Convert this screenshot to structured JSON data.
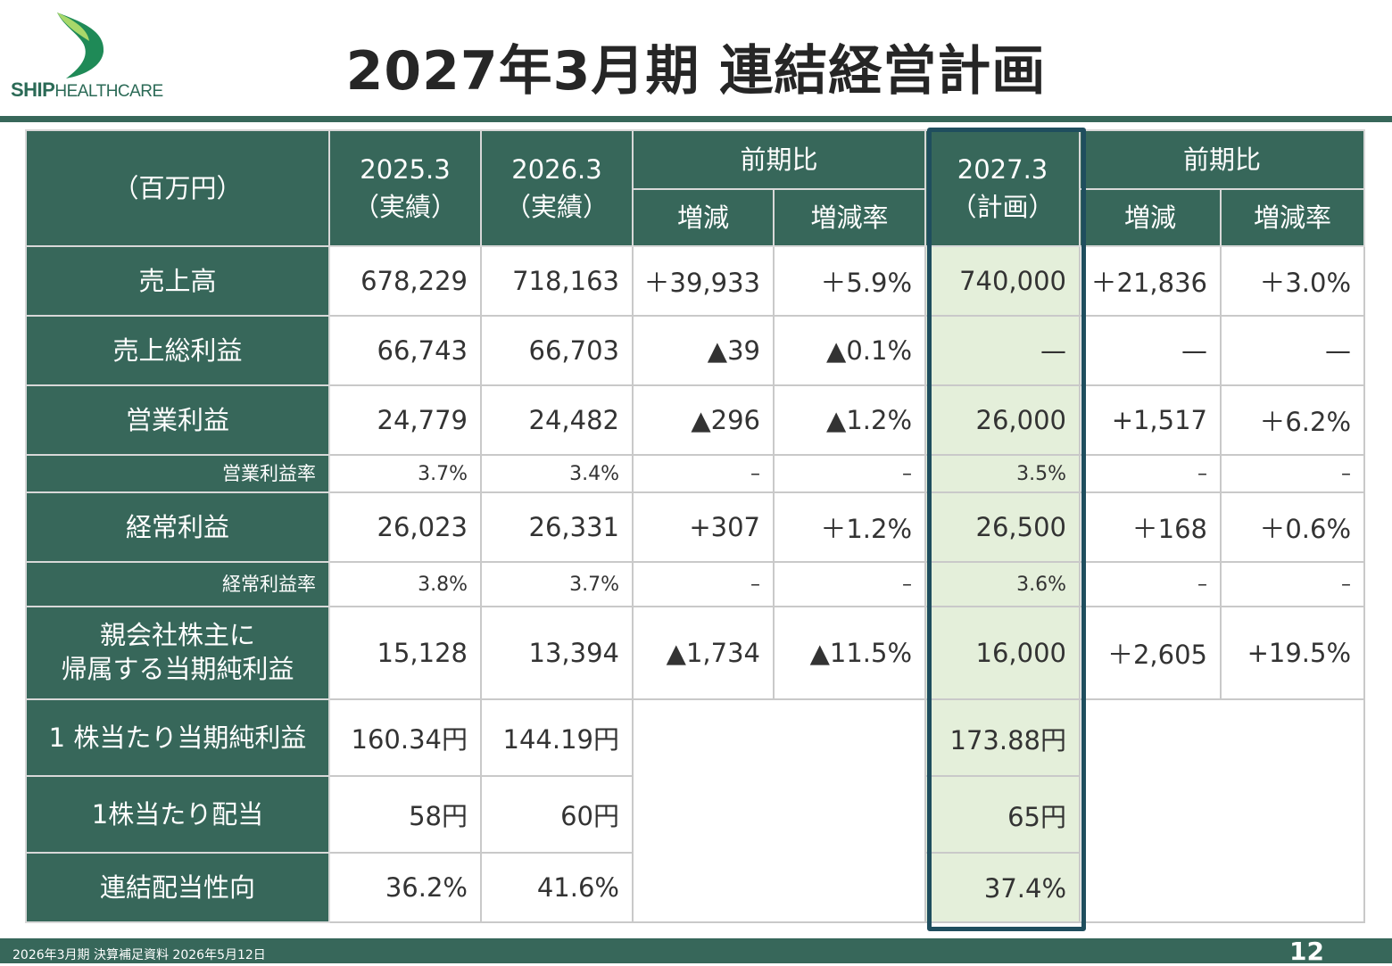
{
  "logo": {
    "brand_bold": "SHIP",
    "brand_light": "HEALTHCARE",
    "colors": {
      "leaf_light": "#a8d86a",
      "leaf_dark": "#1f8a57"
    }
  },
  "title": "2027年3月期 連結経営計画",
  "table": {
    "header": {
      "unit": "（百万円）",
      "col_2025": [
        "2025.3",
        "（実績）"
      ],
      "col_2026": [
        "2026.3",
        "（実績）"
      ],
      "compare_1": "前期比",
      "col_2027": [
        "2027.3",
        "（計画）"
      ],
      "compare_2": "前期比",
      "sub_change": "増減",
      "sub_rate": "増減率"
    },
    "rows": [
      {
        "label": "売上高",
        "v2025": "678,229",
        "v2026": "718,163",
        "chg1": "＋39,933",
        "rate1": "＋5.9%",
        "plan": "740,000",
        "chg2": "＋21,836",
        "rate2": "＋3.0%"
      },
      {
        "label": "売上総利益",
        "v2025": "66,743",
        "v2026": "66,703",
        "chg1": "▲39",
        "rate1": "▲0.1%",
        "plan": "—",
        "chg2": "—",
        "rate2": "—"
      },
      {
        "label": "営業利益",
        "v2025": "24,779",
        "v2026": "24,482",
        "chg1": "▲296",
        "rate1": "▲1.2%",
        "plan": "26,000",
        "chg2": "+1,517",
        "rate2": "＋6.2%"
      },
      {
        "label": "営業利益率",
        "v2025": "3.7%",
        "v2026": "3.4%",
        "chg1": "–",
        "rate1": "–",
        "plan": "3.5%",
        "chg2": "–",
        "rate2": "–"
      },
      {
        "label": "経常利益",
        "v2025": "26,023",
        "v2026": "26,331",
        "chg1": "+307",
        "rate1": "＋1.2%",
        "plan": "26,500",
        "chg2": "＋168",
        "rate2": "＋0.6%"
      },
      {
        "label": "経常利益率",
        "v2025": "3.8%",
        "v2026": "3.7%",
        "chg1": "–",
        "rate1": "–",
        "plan": "3.6%",
        "chg2": "–",
        "rate2": "–"
      },
      {
        "label_lines": [
          "親会社株主に",
          "帰属する当期純利益"
        ],
        "v2025": "15,128",
        "v2026": "13,394",
        "chg1": "▲1,734",
        "rate1": "▲11.5%",
        "plan": "16,000",
        "chg2": "＋2,605",
        "rate2": "+19.5%"
      },
      {
        "label": "1 株当たり当期純利益",
        "v2025": "160.34円",
        "v2026": "144.19円",
        "plan": "173.88円"
      },
      {
        "label": "1株当たり配当",
        "v2025": "58円",
        "v2026": "60円",
        "plan": "65円"
      },
      {
        "label": "連結配当性向",
        "v2025": "36.2%",
        "v2026": "41.6%",
        "plan": "37.4%"
      }
    ]
  },
  "footer": {
    "left": "2026年3月期  決算補足資料  2026年5月12日",
    "page": "12"
  },
  "colors": {
    "header_green": "#37675a",
    "plan_fill": "#e4efda",
    "highlight_border": "#1f4e5e"
  }
}
